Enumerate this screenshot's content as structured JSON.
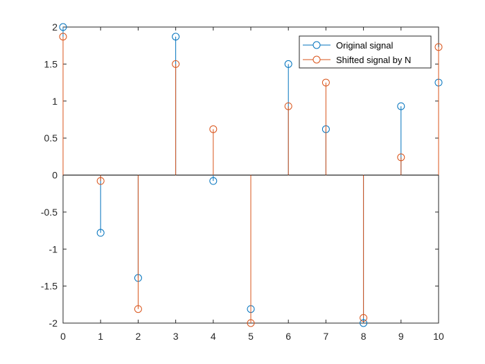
{
  "chart_data": {
    "type": "stem",
    "x": [
      0,
      1,
      2,
      3,
      4,
      5,
      6,
      7,
      8,
      9,
      10
    ],
    "series": [
      {
        "name": "Original signal",
        "color": "#0072BD",
        "values": [
          2.0,
          -0.78,
          -1.39,
          1.87,
          -0.08,
          -1.81,
          1.5,
          0.62,
          -2.0,
          0.93,
          1.25
        ]
      },
      {
        "name": "Shifted signal by N",
        "color": "#D95319",
        "values": [
          1.87,
          -0.08,
          -1.81,
          1.5,
          0.62,
          -2.0,
          0.93,
          1.25,
          -1.93,
          0.24,
          1.73
        ]
      }
    ],
    "xlim": [
      0,
      10
    ],
    "ylim": [
      -2,
      2
    ],
    "xticks": [
      "0",
      "1",
      "2",
      "3",
      "4",
      "5",
      "6",
      "7",
      "8",
      "9",
      "10"
    ],
    "yticks": [
      "-2",
      "-1.5",
      "-1",
      "-0.5",
      "0",
      "0.5",
      "1",
      "1.5",
      "2"
    ],
    "grid": true,
    "legend_position": "top-right"
  }
}
